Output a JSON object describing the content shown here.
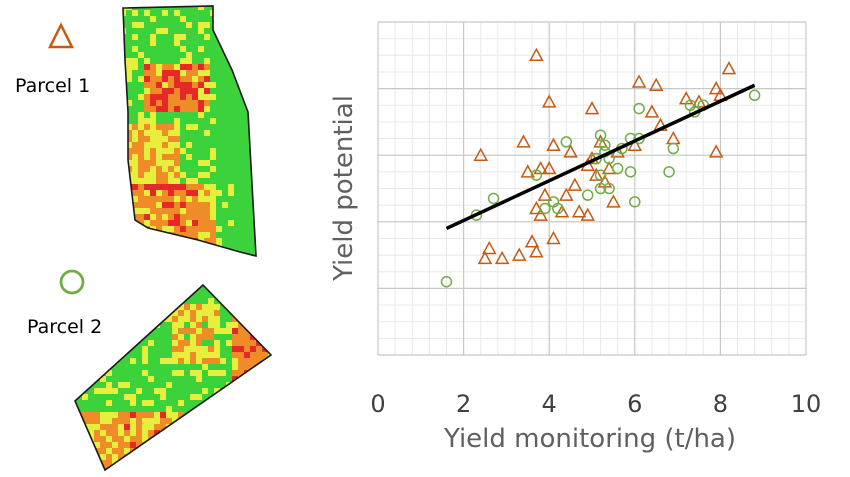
{
  "legend": {
    "parcel1": {
      "label": "Parcel 1",
      "marker": "triangle",
      "color": "#c55a11"
    },
    "parcel2": {
      "label": "Parcel 2",
      "marker": "circle",
      "color": "#70ad47"
    }
  },
  "map_colors": {
    "green": "#3cd23c",
    "yellow": "#e6f03c",
    "orange": "#f08c28",
    "red": "#e62828",
    "outline": "#1a1a1a"
  },
  "chart_data": {
    "type": "scatter",
    "xlabel": "Yield monitoring (t/ha)",
    "ylabel": "Yield potential",
    "xlim": [
      0,
      10
    ],
    "ylim": [
      0,
      10
    ],
    "xticks": [
      0,
      2,
      4,
      6,
      8,
      10
    ],
    "grid": true,
    "series": [
      {
        "name": "Parcel 1",
        "marker": "triangle",
        "color": "#c55a11",
        "points": [
          [
            3.7,
            9.0
          ],
          [
            6.1,
            8.2
          ],
          [
            6.5,
            8.1
          ],
          [
            8.2,
            8.6
          ],
          [
            7.9,
            8.0
          ],
          [
            4.0,
            7.6
          ],
          [
            5.0,
            7.4
          ],
          [
            6.4,
            7.3
          ],
          [
            7.2,
            7.7
          ],
          [
            7.5,
            7.6
          ],
          [
            8.0,
            7.8
          ],
          [
            6.6,
            6.9
          ],
          [
            3.4,
            6.4
          ],
          [
            4.1,
            6.3
          ],
          [
            5.2,
            6.4
          ],
          [
            5.6,
            6.1
          ],
          [
            4.5,
            6.1
          ],
          [
            6.0,
            6.3
          ],
          [
            6.9,
            6.5
          ],
          [
            2.4,
            6.0
          ],
          [
            3.5,
            5.5
          ],
          [
            3.8,
            5.6
          ],
          [
            4.0,
            5.6
          ],
          [
            4.9,
            5.7
          ],
          [
            5.1,
            5.4
          ],
          [
            5.4,
            5.6
          ],
          [
            5.0,
            5.9
          ],
          [
            7.9,
            6.1
          ],
          [
            4.6,
            5.1
          ],
          [
            4.4,
            4.8
          ],
          [
            3.9,
            4.8
          ],
          [
            4.3,
            4.3
          ],
          [
            5.3,
            5.2
          ],
          [
            3.7,
            4.4
          ],
          [
            3.8,
            4.2
          ],
          [
            4.9,
            4.2
          ],
          [
            5.5,
            4.6
          ],
          [
            4.7,
            4.3
          ],
          [
            2.6,
            3.2
          ],
          [
            3.6,
            3.4
          ],
          [
            4.1,
            3.5
          ],
          [
            3.3,
            3.0
          ],
          [
            2.5,
            2.9
          ],
          [
            2.9,
            2.9
          ],
          [
            3.7,
            3.1
          ]
        ]
      },
      {
        "name": "Parcel 2",
        "marker": "circle",
        "color": "#70ad47",
        "points": [
          [
            8.8,
            7.8
          ],
          [
            7.6,
            7.5
          ],
          [
            6.1,
            7.4
          ],
          [
            7.4,
            7.3
          ],
          [
            7.3,
            7.5
          ],
          [
            4.4,
            6.4
          ],
          [
            5.2,
            6.6
          ],
          [
            5.3,
            6.3
          ],
          [
            5.7,
            6.2
          ],
          [
            6.1,
            6.5
          ],
          [
            5.9,
            6.5
          ],
          [
            6.9,
            6.2
          ],
          [
            5.1,
            5.9
          ],
          [
            5.3,
            6.1
          ],
          [
            5.4,
            5.9
          ],
          [
            5.6,
            5.6
          ],
          [
            5.2,
            5.4
          ],
          [
            5.9,
            5.5
          ],
          [
            6.8,
            5.5
          ],
          [
            3.7,
            5.4
          ],
          [
            5.4,
            5.0
          ],
          [
            5.2,
            5.0
          ],
          [
            4.9,
            4.8
          ],
          [
            6.0,
            4.6
          ],
          [
            2.7,
            4.7
          ],
          [
            4.1,
            4.6
          ],
          [
            4.2,
            4.4
          ],
          [
            3.9,
            4.4
          ],
          [
            2.3,
            4.2
          ],
          [
            1.6,
            2.2
          ]
        ]
      }
    ],
    "trendline": {
      "x": [
        1.6,
        8.8
      ],
      "y": [
        3.8,
        8.1
      ],
      "color": "#000000"
    }
  }
}
